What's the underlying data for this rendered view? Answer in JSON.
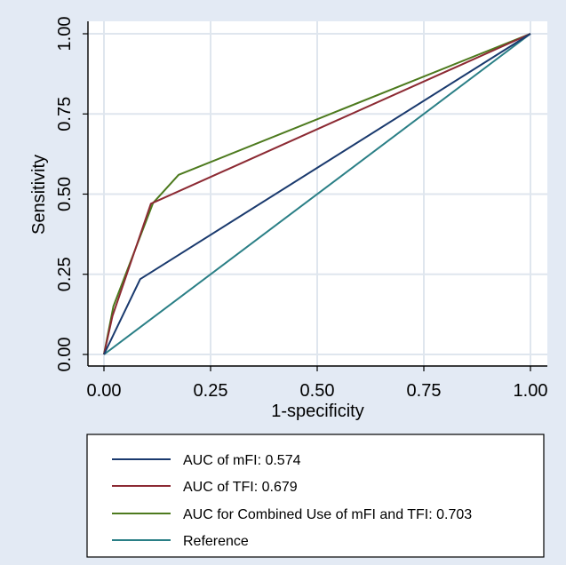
{
  "chart_data": {
    "type": "line",
    "xlabel": "1-specificity",
    "ylabel": "Sensitivity",
    "xlim": [
      0,
      1
    ],
    "ylim": [
      0,
      1
    ],
    "xticks": [
      "0.00",
      "0.25",
      "0.50",
      "0.75",
      "1.00"
    ],
    "yticks": [
      "0.00",
      "0.25",
      "0.50",
      "0.75",
      "1.00"
    ],
    "grid": true,
    "legend_position": "bottom",
    "series": [
      {
        "name": "AUC of mFI: 0.574",
        "color": "#1a3a6e",
        "x": [
          0,
          0.085,
          1
        ],
        "y": [
          0,
          0.235,
          1
        ]
      },
      {
        "name": "AUC of TFI: 0.679",
        "color": "#8c2a33",
        "x": [
          0,
          0.02,
          0.11,
          1
        ],
        "y": [
          0,
          0.12,
          0.47,
          1
        ]
      },
      {
        "name": "AUC for Combined Use of mFI and TFI: 0.703",
        "color": "#4d7a1e",
        "x": [
          0,
          0.022,
          0.115,
          0.175,
          1
        ],
        "y": [
          0,
          0.15,
          0.472,
          0.56,
          1
        ]
      },
      {
        "name": "Reference",
        "color": "#2a7f86",
        "x": [
          0,
          1
        ],
        "y": [
          0,
          1
        ]
      }
    ]
  }
}
